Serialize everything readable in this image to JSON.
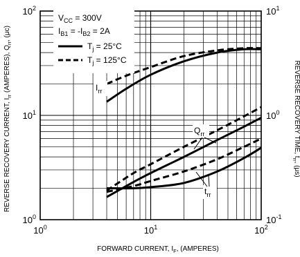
{
  "chart_data": {
    "type": "line",
    "xlabel": "FORWARD CURRENT, I",
    "xlabel_sub": "F",
    "xlabel_suffix": ", (AMPERES)",
    "ylabel_left": "REVERSE RECOVERY CURRENT, I",
    "ylabel_left_sub1": "rr",
    "ylabel_left_mid": " (AMPERES), Q",
    "ylabel_left_sub2": "rr",
    "ylabel_left_suffix": ", (μc)",
    "ylabel_right": "REVERSE RECOVERY TIME, t",
    "ylabel_right_sub": "rr",
    "ylabel_right_suffix": ", (μs)",
    "x_scale": "log",
    "y_scale": "log",
    "xlim": [
      1,
      100
    ],
    "ylim_left": [
      1,
      100
    ],
    "ylim_right": [
      0.1,
      10
    ],
    "grid": true,
    "x_ticks": [
      {
        "base": "10",
        "exp": "0"
      },
      {
        "base": "10",
        "exp": "1"
      },
      {
        "base": "10",
        "exp": "2"
      }
    ],
    "y_ticks_left": [
      {
        "base": "10",
        "exp": "0"
      },
      {
        "base": "10",
        "exp": "1"
      },
      {
        "base": "10",
        "exp": "2"
      }
    ],
    "y_ticks_right": [
      {
        "base": "10",
        "exp": "-1"
      },
      {
        "base": "10",
        "exp": "0"
      },
      {
        "base": "10",
        "exp": "1"
      }
    ],
    "conditions": [
      {
        "main": "V",
        "sub": "CC",
        "rest": " = 300V"
      },
      {
        "main": "I",
        "sub": "B1",
        "rest": " = -I",
        "sub2": "B2",
        "rest2": " = 2A"
      }
    ],
    "legend": [
      {
        "style": "solid",
        "main": "T",
        "sub": "j",
        "rest": " = 25°C"
      },
      {
        "style": "dashed",
        "main": "T",
        "sub": "j",
        "rest": " = 125°C"
      }
    ],
    "annotations": [
      {
        "main": "I",
        "sub": "rr"
      },
      {
        "main": "Q",
        "sub": "rr"
      },
      {
        "main": "t",
        "sub": "rr"
      }
    ],
    "series": [
      {
        "curve": "Irr",
        "style": "solid",
        "axis": "left",
        "x": [
          4,
          6,
          10,
          20,
          40,
          70,
          100
        ],
        "y": [
          13.5,
          18,
          24.5,
          33,
          40,
          43,
          43
        ]
      },
      {
        "curve": "Irr",
        "style": "dashed",
        "axis": "left",
        "x": [
          4,
          6,
          10,
          20,
          40,
          70,
          100
        ],
        "y": [
          20,
          24,
          29,
          37,
          42,
          44,
          44
        ]
      },
      {
        "curve": "Qrr",
        "style": "solid",
        "axis": "left",
        "x": [
          4,
          7,
          10,
          20,
          40,
          70,
          100
        ],
        "y": [
          1.65,
          2.3,
          2.8,
          4,
          5.8,
          7.8,
          9.5
        ]
      },
      {
        "curve": "Qrr",
        "style": "dashed",
        "axis": "left",
        "x": [
          4,
          7,
          10,
          20,
          40,
          70,
          100
        ],
        "y": [
          1.9,
          2.8,
          3.4,
          5,
          7.2,
          9.8,
          12
        ]
      },
      {
        "curve": "trr",
        "style": "solid",
        "axis": "right",
        "x": [
          4,
          7,
          10,
          20,
          40,
          70,
          100
        ],
        "y": [
          0.2,
          0.2,
          0.205,
          0.225,
          0.29,
          0.39,
          0.49
        ]
      },
      {
        "curve": "trr",
        "style": "dashed",
        "axis": "right",
        "x": [
          4,
          7,
          10,
          20,
          40,
          70,
          100
        ],
        "y": [
          0.185,
          0.21,
          0.235,
          0.29,
          0.38,
          0.5,
          0.6
        ]
      }
    ]
  }
}
